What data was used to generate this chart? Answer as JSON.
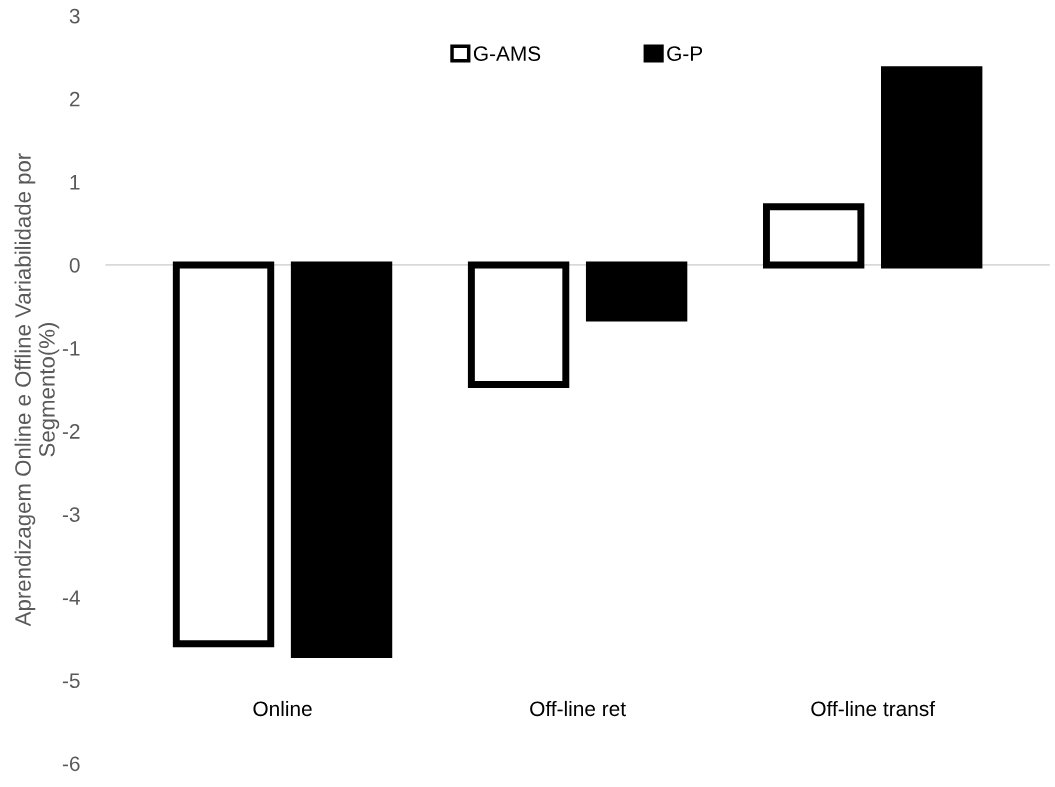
{
  "chart_data": {
    "type": "bar",
    "ylabel": "Aprendizagem Online e Offline Variabilidade por\nSegmento(%)",
    "categories": [
      "Online",
      "Off-line ret",
      "Off-line transf"
    ],
    "series": [
      {
        "name": "G-AMS",
        "color": "#ffffff",
        "values": [
          -4.56,
          -1.44,
          0.7
        ]
      },
      {
        "name": "G-P",
        "color": "#000000",
        "values": [
          -4.69,
          -0.64,
          2.35
        ]
      }
    ],
    "ylim": [
      -6,
      3
    ],
    "yticks": [
      -6,
      -5,
      -4,
      -3,
      -2,
      -1,
      0,
      1,
      2,
      3
    ],
    "ref_lines": [
      {
        "axis": "y",
        "value": 0,
        "color": "#d9d9d9"
      }
    ],
    "grid": false,
    "legend": "top"
  }
}
